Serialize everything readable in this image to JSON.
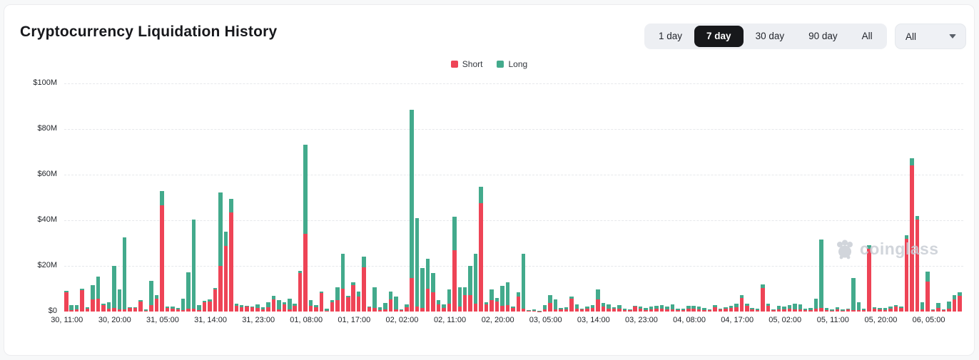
{
  "panel": {
    "title": "Cryptocurrency Liquidation History"
  },
  "time_range_buttons": {
    "options": [
      "1 day",
      "7 day",
      "30 day",
      "90 day",
      "All"
    ],
    "active": "7 day"
  },
  "symbol_dropdown": {
    "value": "All"
  },
  "legend": [
    {
      "label": "Short",
      "color": "#ee4456"
    },
    {
      "label": "Long",
      "color": "#43aa8c"
    }
  ],
  "watermark": {
    "text": "coinglass"
  },
  "chart_data": {
    "type": "bar",
    "stacked": true,
    "title": "Cryptocurrency Liquidation History",
    "unit": "USD millions",
    "ylim": [
      0,
      100
    ],
    "grid": "dashed horizontal",
    "legend_position": "top-center",
    "y_ticks": [
      [
        0,
        "$0"
      ],
      [
        20,
        "$20M"
      ],
      [
        40,
        "$40M"
      ],
      [
        60,
        "$60M"
      ],
      [
        80,
        "$80M"
      ],
      [
        100,
        "$100M"
      ]
    ],
    "x_tick_every": 9,
    "x_tick_labels": [
      "30, 11:00",
      "30, 20:00",
      "31, 05:00",
      "31, 14:00",
      "31, 23:00",
      "01, 08:00",
      "01, 17:00",
      "02, 02:00",
      "02, 11:00",
      "02, 20:00",
      "03, 05:00",
      "03, 14:00",
      "03, 23:00",
      "04, 08:00",
      "04, 17:00",
      "05, 02:00",
      "05, 11:00",
      "05, 20:00",
      "06, 05:00"
    ],
    "series": [
      {
        "name": "Short",
        "color": "#ee4456",
        "values": [
          8.5,
          0.7,
          1.0,
          9.3,
          1.2,
          5.2,
          5.5,
          2.7,
          1.2,
          1.6,
          1.0,
          1.0,
          1.5,
          1.6,
          4.4,
          0.2,
          2.9,
          5.5,
          46.5,
          1.5,
          1.2,
          0.8,
          0.5,
          1.1,
          1.2,
          0.6,
          4.0,
          4.3,
          9.7,
          20.0,
          28.9,
          43.5,
          2.5,
          2.0,
          2.2,
          2.0,
          1.5,
          0.8,
          1.8,
          5.2,
          0.8,
          3.0,
          0.8,
          2.5,
          17.0,
          34.2,
          2.5,
          2.0,
          8.0,
          0.4,
          4.2,
          4.9,
          10.1,
          6.2,
          11.5,
          6.5,
          19.3,
          1.8,
          1.6,
          0.6,
          1.0,
          5.4,
          1.0,
          0.5,
          2.0,
          14.8,
          2.3,
          1.5,
          9.9,
          8.5,
          3.0,
          1.5,
          3.3,
          26.9,
          2.3,
          7.3,
          7.1,
          3.3,
          47.6,
          3.0,
          5.0,
          4.4,
          2.6,
          2.9,
          1.5,
          6.5,
          1.2,
          0.3,
          0.3,
          0.1,
          0.8,
          3.6,
          1.0,
          1.0,
          0.8,
          5.7,
          1.3,
          0.9,
          1.3,
          1.6,
          5.4,
          2.3,
          1.4,
          1.1,
          1.2,
          0.7,
          0.5,
          2.2,
          1.2,
          0.7,
          0.8,
          1.4,
          1.2,
          1.0,
          1.0,
          0.6,
          0.6,
          1.1,
          1.2,
          0.9,
          0.7,
          0.5,
          2.0,
          0.9,
          1.1,
          1.6,
          1.8,
          5.9,
          2.6,
          0.9,
          0.6,
          10.2,
          2.6,
          0.5,
          1.0,
          0.9,
          1.2,
          1.0,
          0.9,
          0.6,
          0.7,
          1.4,
          1.5,
          0.6,
          0.4,
          1.0,
          0.4,
          1.0,
          0.5,
          0.6,
          0.5,
          27.5,
          1.2,
          0.8,
          0.5,
          1.3,
          2.3,
          1.7,
          32.0,
          64.0,
          40.3,
          0.8,
          13.0,
          0.5,
          1.5,
          0.6,
          1.4,
          5.4,
          6.8
        ]
      },
      {
        "name": "Long",
        "color": "#43aa8c",
        "values": [
          0.5,
          2.1,
          1.9,
          0.8,
          0.7,
          6.4,
          9.8,
          0.9,
          2.8,
          18.3,
          8.7,
          31.4,
          0.4,
          0.3,
          0.5,
          0.6,
          10.6,
          1.8,
          6.3,
          0.8,
          1.1,
          0.8,
          5.2,
          16.2,
          39.1,
          2.3,
          0.7,
          1.1,
          0.7,
          32.3,
          6.2,
          6.0,
          0.8,
          0.8,
          0.4,
          0.3,
          1.6,
          1.0,
          2.2,
          1.6,
          4.1,
          1.0,
          4.9,
          0.8,
          0.8,
          39.0,
          2.6,
          0.8,
          0.7,
          0.8,
          0.8,
          5.7,
          15.1,
          0.6,
          1.2,
          2.4,
          4.9,
          0.5,
          9.0,
          1.3,
          2.9,
          3.5,
          5.5,
          0.5,
          1.0,
          73.7,
          38.5,
          17.5,
          13.2,
          8.4,
          1.9,
          1.5,
          6.3,
          14.8,
          8.3,
          3.3,
          12.9,
          21.9,
          7.1,
          1.0,
          4.6,
          1.6,
          8.7,
          9.8,
          0.8,
          2.0,
          24.0,
          0.2,
          0.5,
          0.1,
          2.1,
          3.5,
          4.4,
          0.6,
          1.2,
          1.0,
          1.8,
          0.4,
          1.0,
          1.2,
          4.2,
          1.3,
          1.7,
          0.8,
          1.6,
          0.6,
          0.5,
          0.4,
          0.9,
          0.9,
          1.5,
          1.2,
          1.6,
          1.1,
          2.1,
          0.8,
          0.7,
          1.3,
          1.4,
          1.2,
          0.9,
          0.5,
          0.8,
          0.5,
          0.8,
          1.0,
          1.6,
          1.4,
          1.0,
          0.7,
          0.8,
          1.8,
          0.8,
          0.3,
          1.4,
          1.2,
          1.6,
          2.6,
          2.2,
          0.8,
          0.9,
          4.3,
          30.1,
          1.0,
          0.6,
          0.9,
          0.4,
          0.2,
          14.3,
          3.4,
          0.7,
          1.5,
          0.7,
          0.8,
          1.1,
          1.0,
          0.6,
          0.4,
          1.3,
          3.3,
          1.7,
          3.4,
          4.4,
          0.4,
          2.1,
          0.5,
          3.0,
          1.9,
          1.7
        ]
      }
    ]
  }
}
